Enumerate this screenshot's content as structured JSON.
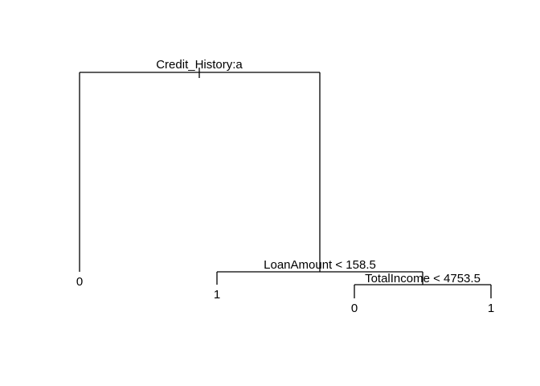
{
  "tree": {
    "root": {
      "split_label": "Credit_History:a",
      "left_leaf": "0",
      "right_node": {
        "split_label": "LoanAmount < 158.5",
        "left_leaf": "1",
        "right_node": {
          "split_label": "TotalIncome < 4753.5",
          "left_leaf": "0",
          "right_leaf": "1"
        }
      }
    }
  },
  "colors": {
    "line": "#000000",
    "text": "#000000",
    "background": "#ffffff"
  }
}
